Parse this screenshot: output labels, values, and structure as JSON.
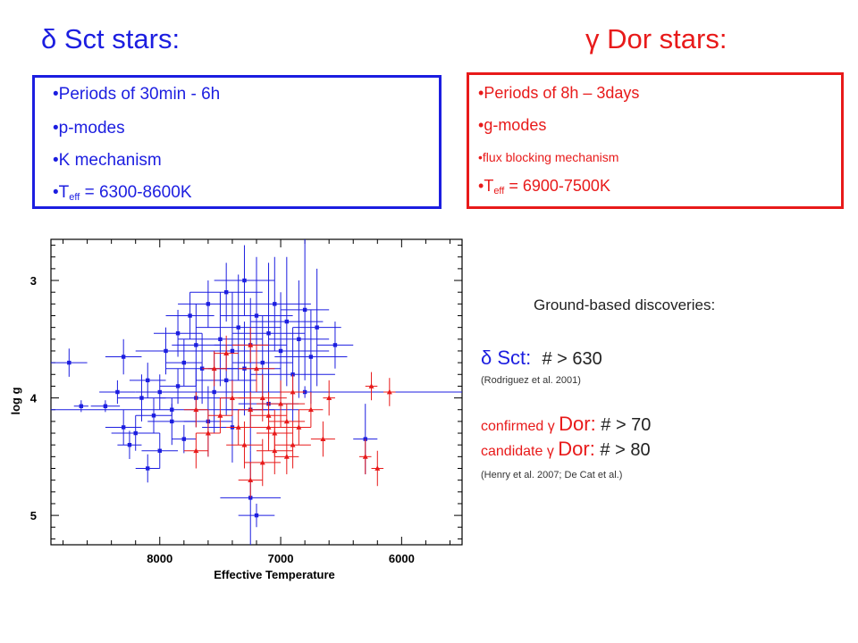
{
  "titles": {
    "dsct": "δ Sct stars:",
    "gdor": "γ Dor stars:"
  },
  "dsct_box": {
    "periods": "Periods of 30min - 6h",
    "modes": "p-modes",
    "mechanism": "K mechanism",
    "teff_prefix": "T",
    "teff_sub": "eff",
    "teff_value": " = 6300-8600K"
  },
  "gdor_box": {
    "periods": "Periods of 8h – 3days",
    "modes": "g-modes",
    "mechanism": "flux blocking mechanism",
    "teff_prefix": "T",
    "teff_sub": "eff",
    "teff_value": " = 6900-7500K"
  },
  "discoveries": {
    "heading": "Ground-based discoveries:",
    "dsct_label": "δ Sct:",
    "dsct_count": "# > 630",
    "dsct_ref": "(Rodriguez et al. 2001)",
    "confirmed_prefix": "confirmed γ ",
    "confirmed_big": "Dor:",
    "confirmed_count": " # > 70",
    "candidate_prefix": "candidate γ ",
    "candidate_big": "Dor:",
    "candidate_count": " # > 80",
    "gdor_ref": "(Henry et al. 2007; De Cat et al.)"
  },
  "colors": {
    "dsct": "#1c1ee0",
    "gdor": "#e81a1a",
    "axis": "#000000"
  },
  "chart_data": {
    "type": "scatter",
    "title": "",
    "xlabel": "Effective Temperature",
    "ylabel": "log g",
    "xlim": [
      8900,
      5500
    ],
    "ylim": [
      5.25,
      2.65
    ],
    "x_ticks": [
      8000,
      7000,
      6000
    ],
    "x_tick_labels": [
      "8000",
      "7000",
      "6000"
    ],
    "y_ticks": [
      3,
      4,
      5
    ],
    "y_tick_labels": [
      "3",
      "4",
      "5"
    ],
    "grid": false,
    "series": [
      {
        "color": "#1c1ee0",
        "marker": "square",
        "points": [
          {
            "x": 8750,
            "y": 3.7,
            "xerr": 150,
            "yerr": 0.12
          },
          {
            "x": 8650,
            "y": 4.07,
            "xerr": 60,
            "yerr": 0.05
          },
          {
            "x": 8450,
            "y": 4.07,
            "xerr": 120,
            "yerr": 0.05
          },
          {
            "x": 8350,
            "y": 3.95,
            "xerr": 150,
            "yerr": 0.1
          },
          {
            "x": 8300,
            "y": 3.65,
            "xerr": 150,
            "yerr": 0.15
          },
          {
            "x": 8300,
            "y": 4.25,
            "xerr": 150,
            "yerr": 0.15
          },
          {
            "x": 8250,
            "y": 4.4,
            "xerr": 100,
            "yerr": 0.12
          },
          {
            "x": 8200,
            "y": 4.3,
            "xerr": 200,
            "yerr": 0.15
          },
          {
            "x": 8150,
            "y": 4.0,
            "xerr": 200,
            "yerr": 0.2
          },
          {
            "x": 8100,
            "y": 3.85,
            "xerr": 150,
            "yerr": 0.15
          },
          {
            "x": 8100,
            "y": 4.6,
            "xerr": 100,
            "yerr": 0.12
          },
          {
            "x": 8050,
            "y": 4.15,
            "xerr": 150,
            "yerr": 0.15
          },
          {
            "x": 8000,
            "y": 3.95,
            "xerr": 200,
            "yerr": 0.15
          },
          {
            "x": 8000,
            "y": 4.45,
            "xerr": 150,
            "yerr": 0.15
          },
          {
            "x": 7950,
            "y": 3.6,
            "xerr": 250,
            "yerr": 0.2
          },
          {
            "x": 7900,
            "y": 4.2,
            "xerr": 200,
            "yerr": 0.2
          },
          {
            "x": 7900,
            "y": 4.1,
            "xerr": 1050,
            "yerr": 0.05
          },
          {
            "x": 7850,
            "y": 3.9,
            "xerr": 150,
            "yerr": 0.15
          },
          {
            "x": 7850,
            "y": 3.45,
            "xerr": 200,
            "yerr": 0.2
          },
          {
            "x": 7800,
            "y": 4.35,
            "xerr": 100,
            "yerr": 0.12
          },
          {
            "x": 7800,
            "y": 3.7,
            "xerr": 150,
            "yerr": 0.2
          },
          {
            "x": 7750,
            "y": 3.3,
            "xerr": 200,
            "yerr": 0.2
          },
          {
            "x": 7700,
            "y": 3.55,
            "xerr": 200,
            "yerr": 0.35
          },
          {
            "x": 7700,
            "y": 4.0,
            "xerr": 300,
            "yerr": 0.25
          },
          {
            "x": 7650,
            "y": 3.75,
            "xerr": 300,
            "yerr": 0.3
          },
          {
            "x": 7600,
            "y": 3.2,
            "xerr": 250,
            "yerr": 0.2
          },
          {
            "x": 7600,
            "y": 4.2,
            "xerr": 200,
            "yerr": 0.3
          },
          {
            "x": 7550,
            "y": 3.95,
            "xerr": 300,
            "yerr": 0.35
          },
          {
            "x": 7500,
            "y": 3.5,
            "xerr": 350,
            "yerr": 0.4
          },
          {
            "x": 7450,
            "y": 3.1,
            "xerr": 300,
            "yerr": 0.25
          },
          {
            "x": 7450,
            "y": 3.85,
            "xerr": 250,
            "yerr": 0.3
          },
          {
            "x": 7400,
            "y": 3.6,
            "xerr": 300,
            "yerr": 0.5
          },
          {
            "x": 7400,
            "y": 4.25,
            "xerr": 250,
            "yerr": 0.3
          },
          {
            "x": 7350,
            "y": 3.4,
            "xerr": 350,
            "yerr": 0.45
          },
          {
            "x": 7300,
            "y": 3.75,
            "xerr": 300,
            "yerr": 0.4
          },
          {
            "x": 7300,
            "y": 3.0,
            "xerr": 250,
            "yerr": 0.3
          },
          {
            "x": 7250,
            "y": 3.55,
            "xerr": 300,
            "yerr": 0.4
          },
          {
            "x": 7250,
            "y": 4.1,
            "xerr": 200,
            "yerr": 0.35
          },
          {
            "x": 7200,
            "y": 3.3,
            "xerr": 300,
            "yerr": 0.5
          },
          {
            "x": 7150,
            "y": 3.7,
            "xerr": 250,
            "yerr": 0.4
          },
          {
            "x": 7100,
            "y": 3.45,
            "xerr": 300,
            "yerr": 0.6
          },
          {
            "x": 7100,
            "y": 4.05,
            "xerr": 250,
            "yerr": 0.3
          },
          {
            "x": 7050,
            "y": 3.2,
            "xerr": 300,
            "yerr": 0.4
          },
          {
            "x": 7000,
            "y": 3.6,
            "xerr": 400,
            "yerr": 0.5
          },
          {
            "x": 6950,
            "y": 3.35,
            "xerr": 300,
            "yerr": 0.55
          },
          {
            "x": 6900,
            "y": 3.8,
            "xerr": 350,
            "yerr": 0.4
          },
          {
            "x": 6850,
            "y": 3.5,
            "xerr": 250,
            "yerr": 0.5
          },
          {
            "x": 6800,
            "y": 3.25,
            "xerr": 200,
            "yerr": 0.6
          },
          {
            "x": 6800,
            "y": 3.95,
            "xerr": 1300,
            "yerr": 0.05
          },
          {
            "x": 6750,
            "y": 3.65,
            "xerr": 300,
            "yerr": 0.4
          },
          {
            "x": 6700,
            "y": 3.4,
            "xerr": 200,
            "yerr": 0.5
          },
          {
            "x": 6550,
            "y": 3.55,
            "xerr": 150,
            "yerr": 0.2
          },
          {
            "x": 6300,
            "y": 4.35,
            "xerr": 100,
            "yerr": 0.3
          },
          {
            "x": 7250,
            "y": 4.85,
            "xerr": 250,
            "yerr": 0.4
          },
          {
            "x": 7200,
            "y": 5.0,
            "xerr": 150,
            "yerr": 0.1
          }
        ]
      },
      {
        "color": "#e81a1a",
        "marker": "triangle",
        "points": [
          {
            "x": 7250,
            "y": 3.55,
            "xerr": 150,
            "yerr": 0.15
          },
          {
            "x": 7200,
            "y": 3.75,
            "xerr": 150,
            "yerr": 0.2
          },
          {
            "x": 7450,
            "y": 3.62,
            "xerr": 100,
            "yerr": 0.15
          },
          {
            "x": 7150,
            "y": 4.0,
            "xerr": 200,
            "yerr": 0.2
          },
          {
            "x": 7100,
            "y": 4.15,
            "xerr": 150,
            "yerr": 0.2
          },
          {
            "x": 7050,
            "y": 4.3,
            "xerr": 150,
            "yerr": 0.2
          },
          {
            "x": 7000,
            "y": 4.05,
            "xerr": 200,
            "yerr": 0.2
          },
          {
            "x": 6950,
            "y": 4.2,
            "xerr": 150,
            "yerr": 0.15
          },
          {
            "x": 6900,
            "y": 4.4,
            "xerr": 150,
            "yerr": 0.2
          },
          {
            "x": 6900,
            "y": 3.95,
            "xerr": 100,
            "yerr": 0.15
          },
          {
            "x": 7300,
            "y": 4.4,
            "xerr": 150,
            "yerr": 0.2
          },
          {
            "x": 7250,
            "y": 4.1,
            "xerr": 100,
            "yerr": 0.15
          },
          {
            "x": 7350,
            "y": 4.25,
            "xerr": 100,
            "yerr": 0.15
          },
          {
            "x": 7400,
            "y": 4.0,
            "xerr": 100,
            "yerr": 0.15
          },
          {
            "x": 7500,
            "y": 4.15,
            "xerr": 100,
            "yerr": 0.15
          },
          {
            "x": 7600,
            "y": 4.3,
            "xerr": 100,
            "yerr": 0.2
          },
          {
            "x": 7700,
            "y": 4.1,
            "xerr": 100,
            "yerr": 0.15
          },
          {
            "x": 7050,
            "y": 4.45,
            "xerr": 150,
            "yerr": 0.2
          },
          {
            "x": 7150,
            "y": 4.55,
            "xerr": 150,
            "yerr": 0.2
          },
          {
            "x": 6950,
            "y": 4.5,
            "xerr": 100,
            "yerr": 0.15
          },
          {
            "x": 6850,
            "y": 4.25,
            "xerr": 100,
            "yerr": 0.15
          },
          {
            "x": 6750,
            "y": 4.1,
            "xerr": 100,
            "yerr": 0.15
          },
          {
            "x": 6650,
            "y": 4.35,
            "xerr": 100,
            "yerr": 0.15
          },
          {
            "x": 7250,
            "y": 4.7,
            "xerr": 100,
            "yerr": 0.15
          },
          {
            "x": 7100,
            "y": 4.25,
            "xerr": 250,
            "yerr": 0.2
          },
          {
            "x": 6300,
            "y": 4.5,
            "xerr": 50,
            "yerr": 0.15
          },
          {
            "x": 6200,
            "y": 4.6,
            "xerr": 50,
            "yerr": 0.15
          },
          {
            "x": 6100,
            "y": 3.95,
            "xerr": 50,
            "yerr": 0.12
          },
          {
            "x": 6250,
            "y": 3.9,
            "xerr": 50,
            "yerr": 0.12
          },
          {
            "x": 6600,
            "y": 4.0,
            "xerr": 50,
            "yerr": 0.15
          },
          {
            "x": 7700,
            "y": 4.45,
            "xerr": 100,
            "yerr": 0.15
          },
          {
            "x": 7550,
            "y": 3.75,
            "xerr": 100,
            "yerr": 0.15
          }
        ]
      }
    ]
  }
}
